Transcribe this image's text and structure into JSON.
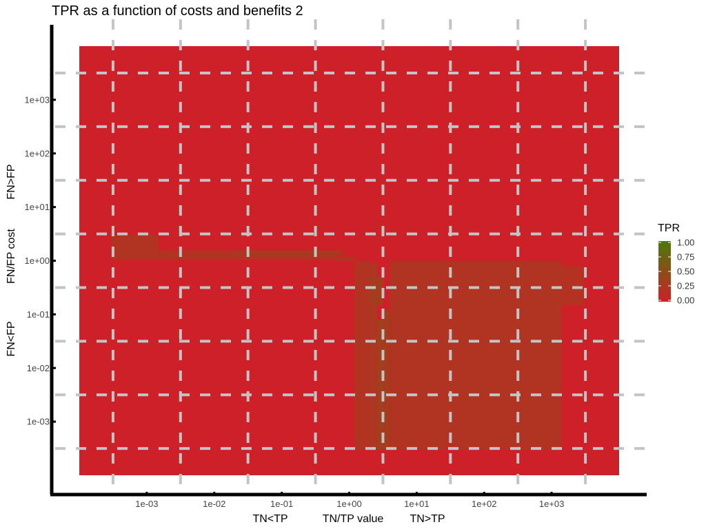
{
  "chart_data": {
    "type": "heatmap",
    "title": "TPR as a function of costs and benefits 2",
    "x_axis": {
      "scale": "log10",
      "range": [
        0.0001,
        10000.0
      ],
      "ticks": [
        0.001,
        0.01,
        0.1,
        1,
        10,
        100,
        1000
      ],
      "tick_labels": [
        "1e-03",
        "1e-02",
        "1e-01",
        "1e+00",
        "1e+01",
        "1e+02",
        "1e+03"
      ],
      "label_left": "TN<TP",
      "label_center": "TN/TP value",
      "label_right": "TN>TP"
    },
    "y_axis": {
      "scale": "log10",
      "range": [
        0.0001,
        10000.0
      ],
      "ticks": [
        0.001,
        0.01,
        0.1,
        1,
        10,
        100,
        1000
      ],
      "tick_labels": [
        "1e-03",
        "1e-02",
        "1e-01",
        "1e+00",
        "1e+01",
        "1e+02",
        "1e+03"
      ],
      "label_bottom": "FN<FP",
      "label_center": "FN/FP cost",
      "label_top": "FN>FP"
    },
    "fill": {
      "name": "TPR",
      "range": [
        0,
        1
      ],
      "breaks": [
        1.0,
        0.75,
        0.5,
        0.25,
        0.0
      ],
      "break_labels": [
        "1.00",
        "0.75",
        "0.50",
        "0.25",
        "0.00"
      ],
      "color_low": "#cd2028",
      "color_high": "#4b7a0a"
    },
    "grid": "dashed",
    "legend_position": "right",
    "background_tpr": 0,
    "regions": [
      {
        "x": [
          0.0003,
          0.0015
        ],
        "y": [
          1.05,
          3.0
        ],
        "tpr": 0.22
      },
      {
        "x": [
          0.0015,
          0.6
        ],
        "y": [
          1.05,
          1.55
        ],
        "tpr": 0.22
      },
      {
        "x": [
          0.6,
          1.2
        ],
        "y": [
          1.0,
          1.2
        ],
        "tpr": 0.22
      },
      {
        "x": [
          0.02,
          0.8
        ],
        "y": [
          1.3,
          1.55
        ],
        "tpr": 0.3
      },
      {
        "x": [
          1.2,
          2.0
        ],
        "y": [
          0.0003,
          1.0
        ],
        "tpr": 0.22
      },
      {
        "x": [
          2.0,
          2.6
        ],
        "y": [
          0.0003,
          0.9
        ],
        "tpr": 0.25
      },
      {
        "x": [
          2.0,
          3.2
        ],
        "y": [
          0.15,
          0.5
        ],
        "tpr": 0.32
      },
      {
        "x": [
          2.6,
          3.2
        ],
        "y": [
          0.0003,
          0.08
        ],
        "tpr": 0.35
      },
      {
        "x": [
          3.2,
          4.0
        ],
        "y": [
          0.0003,
          0.12
        ],
        "tpr": 0.3
      },
      {
        "x": [
          4.0,
          1400
        ],
        "y": [
          0.0003,
          1.0
        ],
        "tpr": 0.22
      },
      {
        "x": [
          1400,
          3000
        ],
        "y": [
          0.15,
          0.8
        ],
        "tpr": 0.2
      }
    ]
  }
}
